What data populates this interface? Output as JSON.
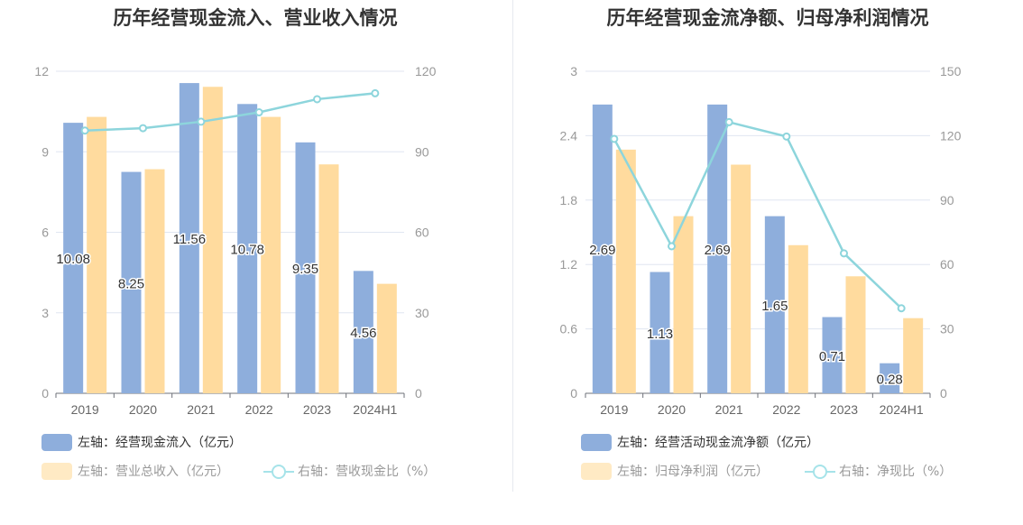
{
  "chart_data": [
    {
      "type": "bar",
      "title": "历年经营现金流入、营业收入情况",
      "categories": [
        "2019",
        "2020",
        "2021",
        "2022",
        "2023",
        "2024H1"
      ],
      "series": [
        {
          "name": "左轴：经营现金流入（亿元）",
          "axis": "left",
          "values": [
            10.08,
            8.25,
            11.56,
            10.78,
            9.35,
            4.56
          ],
          "labels": [
            "10.08",
            "8.25",
            "11.56",
            "10.78",
            "9.35",
            "4.56"
          ],
          "color": "#8eaedc"
        },
        {
          "name": "左轴：营业总收入（亿元）",
          "axis": "left",
          "values": [
            10.3,
            8.35,
            11.42,
            10.3,
            8.53,
            4.08
          ],
          "color": "#ffdb9e"
        },
        {
          "name": "右轴：营收现金比（%）",
          "axis": "right",
          "type": "line",
          "values": [
            97.9,
            98.8,
            101.2,
            104.7,
            109.6,
            111.8
          ],
          "color": "#8dd5dc"
        }
      ],
      "left_axis": {
        "ylim": [
          0,
          12
        ],
        "ticks": [
          "0",
          "3",
          "6",
          "9",
          "12"
        ]
      },
      "right_axis": {
        "ylim": [
          0,
          120
        ],
        "ticks": [
          "0",
          "30",
          "60",
          "90",
          "120"
        ]
      },
      "grid": true,
      "legend_position": "bottom-left",
      "legend": [
        {
          "label": "左轴：经营现金流入（亿元）",
          "style": "bar",
          "color": "#8eaedc"
        },
        {
          "label": "左轴：营业总收入（亿元）",
          "style": "bar",
          "color": "#ffeac4"
        },
        {
          "label": "右轴：营收现金比（%）",
          "style": "line",
          "color": "#a6e3e9"
        }
      ]
    },
    {
      "type": "bar",
      "title": "历年经营现金流净额、归母净利润情况",
      "categories": [
        "2019",
        "2020",
        "2021",
        "2022",
        "2023",
        "2024H1"
      ],
      "series": [
        {
          "name": "左轴：经营活动现金流净额（亿元）",
          "axis": "left",
          "values": [
            2.69,
            1.13,
            2.69,
            1.65,
            0.71,
            0.28
          ],
          "labels": [
            "2.69",
            "1.13",
            "2.69",
            "1.65",
            "0.71",
            "0.28"
          ],
          "color": "#8eaedc"
        },
        {
          "name": "左轴：归母净利润（亿元）",
          "axis": "left",
          "values": [
            2.27,
            1.65,
            2.13,
            1.38,
            1.09,
            0.7
          ],
          "color": "#ffdb9e"
        },
        {
          "name": "右轴：净现比（%）",
          "axis": "right",
          "type": "line",
          "values": [
            118.5,
            68.5,
            126.3,
            119.6,
            65.2,
            39.6
          ],
          "color": "#8dd5dc"
        }
      ],
      "left_axis": {
        "ylim": [
          0,
          3
        ],
        "ticks": [
          "0",
          "0.6",
          "1.2",
          "1.8",
          "2.4",
          "3"
        ]
      },
      "right_axis": {
        "ylim": [
          0,
          150
        ],
        "ticks": [
          "0",
          "30",
          "60",
          "90",
          "120",
          "150"
        ]
      },
      "grid": true,
      "legend_position": "bottom-left",
      "legend": [
        {
          "label": "左轴：经营活动现金流净额（亿元）",
          "style": "bar",
          "color": "#8eaedc"
        },
        {
          "label": "左轴：归母净利润（亿元）",
          "style": "bar",
          "color": "#ffeac4"
        },
        {
          "label": "右轴：净现比（%）",
          "style": "line",
          "color": "#a6e3e9"
        }
      ]
    }
  ]
}
